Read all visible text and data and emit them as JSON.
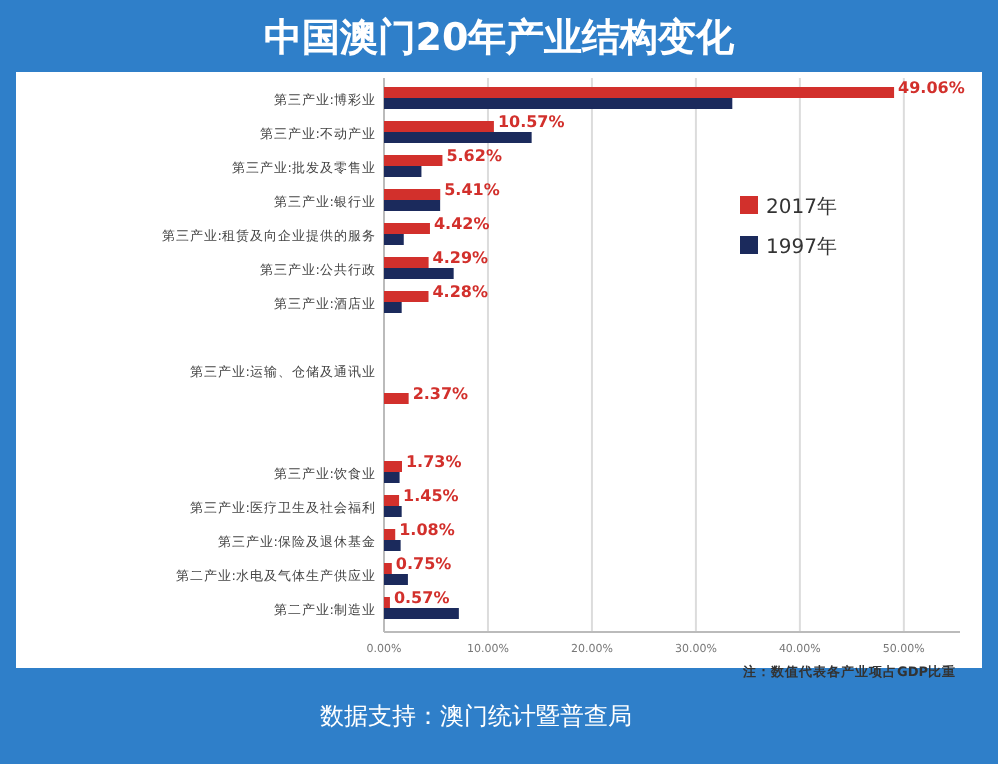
{
  "chart_data": {
    "type": "bar",
    "orientation": "horizontal",
    "title": "中国澳门20年产业结构变化",
    "categories": [
      "第三产业:博彩业",
      "第三产业:不动产业",
      "第三产业:批发及零售业",
      "第三产业:银行业",
      "第三产业:租赁及向企业提供的服务",
      "第三产业:公共行政",
      "第三产业:酒店业",
      null,
      "第三产业:运输、仓储及通讯业",
      null,
      null,
      "第三产业:饮食业",
      "第三产业:医疗卫生及社会福利",
      "第三产业:保险及退休基金",
      "第二产业:水电及气体生产供应业",
      "第二产业:制造业"
    ],
    "series": [
      {
        "name": "2017年",
        "color": "#d2302c",
        "values": [
          49.06,
          10.57,
          5.62,
          5.41,
          4.42,
          4.29,
          4.28,
          null,
          null,
          2.37,
          null,
          1.73,
          1.45,
          1.08,
          0.75,
          0.57
        ],
        "value_labels": [
          "49.06%",
          "10.57%",
          "5.62%",
          "5.41%",
          "4.42%",
          "4.29%",
          "4.28%",
          null,
          null,
          "2.37%",
          null,
          "1.73%",
          "1.45%",
          "1.08%",
          "0.75%",
          "0.57%"
        ]
      },
      {
        "name": "1997年",
        "color": "#1b2a5c",
        "values": [
          33.5,
          14.2,
          3.6,
          5.4,
          1.9,
          6.7,
          1.7,
          null,
          null,
          null,
          null,
          1.5,
          1.7,
          1.6,
          2.3,
          7.2
        ]
      }
    ],
    "xlim": [
      0,
      55.4
    ],
    "xticks": [
      {
        "value": 0,
        "label": "0.00%"
      },
      {
        "value": 10,
        "label": "10.00%"
      },
      {
        "value": 20,
        "label": "20.00%"
      },
      {
        "value": 30,
        "label": "30.00%"
      },
      {
        "value": 40,
        "label": "40.00%"
      },
      {
        "value": 50,
        "label": "50.00%"
      }
    ],
    "grid": "x",
    "legend": "top right",
    "annotations": [
      "注：数值代表各产业项占GDP比重",
      "数据支持：澳门统计暨普查局"
    ]
  }
}
